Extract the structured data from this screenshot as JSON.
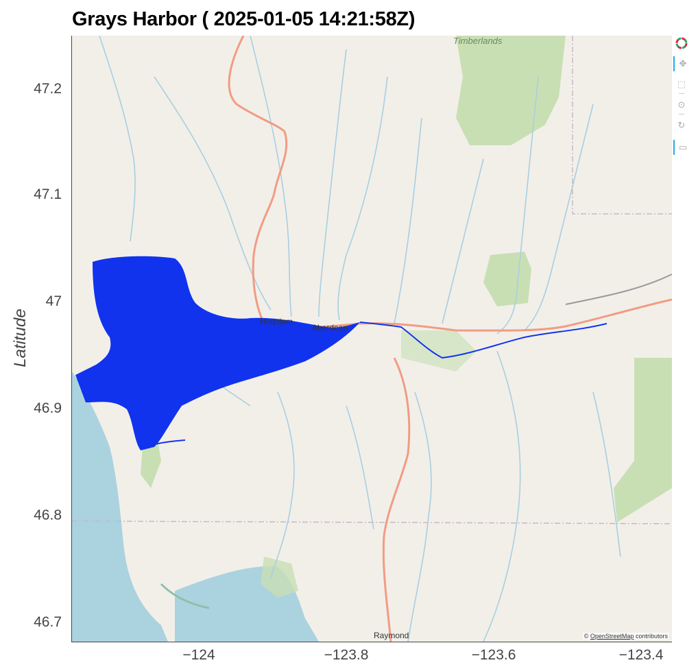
{
  "title": "Grays Harbor ( 2025-01-05 14:21:58Z)",
  "ylabel": "Latitude",
  "xlabel": "",
  "x_ticks": [
    "−124",
    "−123.8",
    "−123.6",
    "−123.4"
  ],
  "y_ticks": [
    "47.2",
    "47.1",
    "47",
    "46.9",
    "46.8",
    "46.7"
  ],
  "x_tick_values": [
    -124,
    -123.8,
    -123.6,
    -123.4
  ],
  "y_tick_values": [
    47.2,
    47.1,
    47,
    46.9,
    46.8,
    46.7
  ],
  "x_range": [
    -124.18,
    -123.36
  ],
  "y_range": [
    46.682,
    47.25
  ],
  "place_labels": {
    "timberlands": "Timberlands",
    "hoquiam": "Hoquiam",
    "aberdeen": "Aberdeen",
    "raymond": "Raymond"
  },
  "attribution": {
    "prefix": "©",
    "link": "OpenStreetMap",
    "suffix": "contributors"
  },
  "toolbar": {
    "logo_icon": "bokeh-logo-icon",
    "tools": [
      "pan-icon",
      "box-zoom-icon",
      "wheel-zoom-icon",
      "reset-icon",
      "hover-icon"
    ]
  },
  "colors": {
    "water_overlay": "#1133ee",
    "ocean": "#aad3df",
    "land": "#f2efe9",
    "forest": "#c8dfb4",
    "road": "#f29b82",
    "river": "#a7cfe0"
  }
}
